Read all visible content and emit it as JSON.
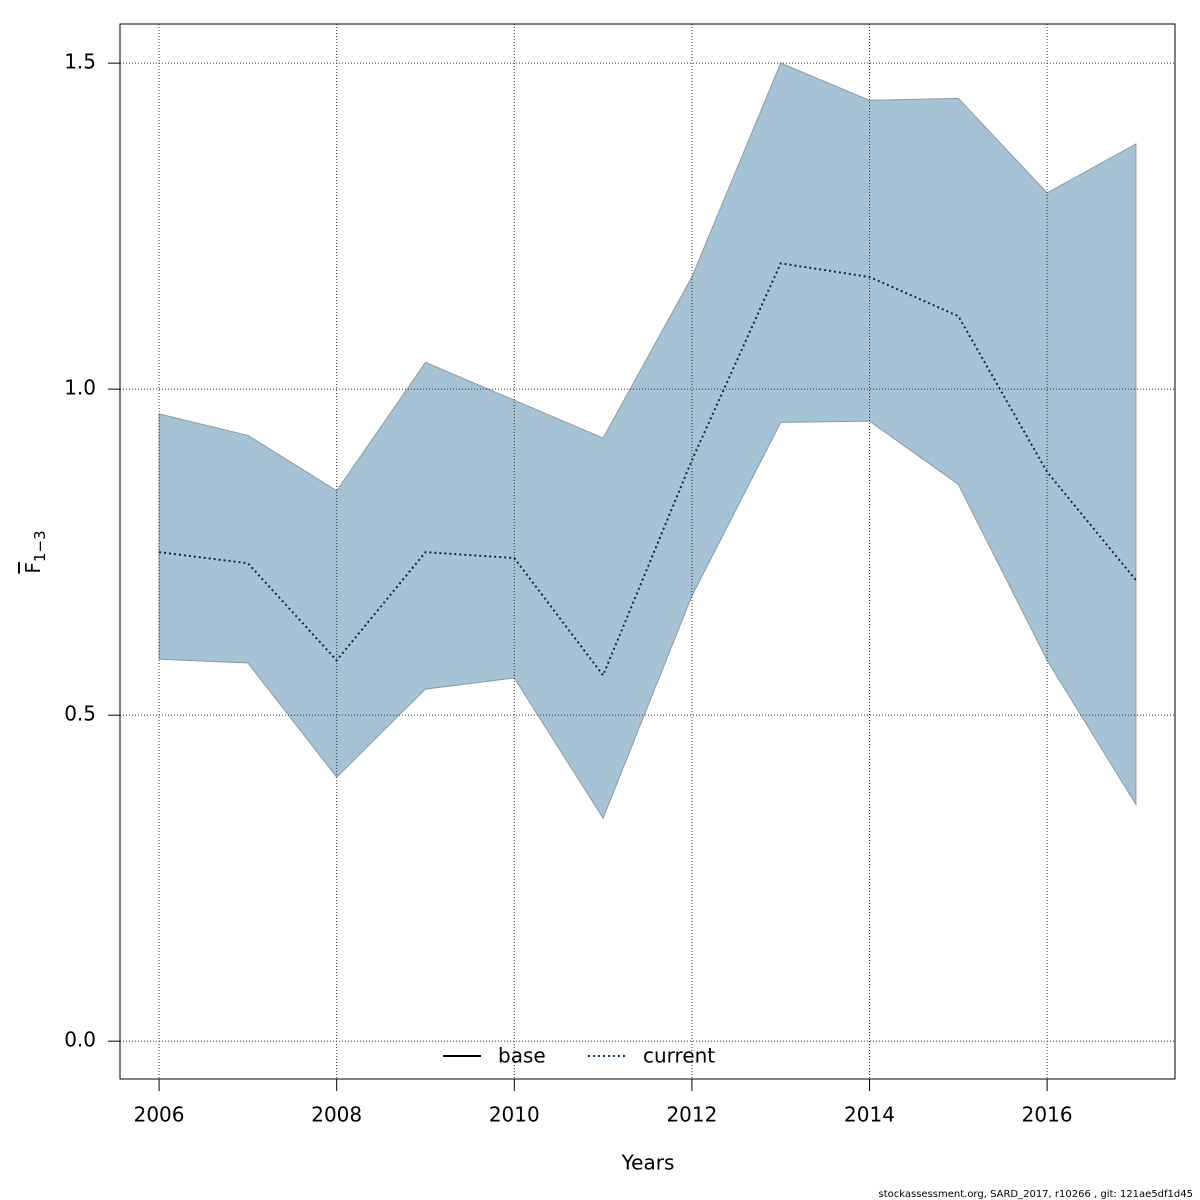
{
  "chart_data": {
    "type": "line",
    "xlabel": "Years",
    "ylabel": "F",
    "ylabel_sub": "1−3",
    "footer": "stockassessment.org, SARD_2017, r10266 , git: 121ae5df1d45",
    "x": [
      2006,
      2007,
      2008,
      2009,
      2010,
      2011,
      2012,
      2013,
      2014,
      2015,
      2016,
      2017
    ],
    "band": {
      "color": "#a5c3d4",
      "edge": "#8a9aa3",
      "upper": [
        0.962,
        0.929,
        0.844,
        1.041,
        0.983,
        0.925,
        1.172,
        1.5,
        1.443,
        1.446,
        1.301,
        1.376
      ],
      "lower": [
        0.586,
        0.58,
        0.405,
        0.54,
        0.557,
        0.342,
        0.683,
        0.949,
        0.951,
        0.854,
        0.584,
        0.363
      ]
    },
    "series": [
      {
        "name": "current",
        "color": "#0b2a3d",
        "dash": "dotted",
        "values": [
          0.75,
          0.733,
          0.584,
          0.75,
          0.741,
          0.561,
          0.891,
          1.193,
          1.172,
          1.112,
          0.873,
          0.707
        ]
      }
    ],
    "legend": [
      {
        "name": "base",
        "color": "#000000",
        "dash": "solid"
      },
      {
        "name": "current",
        "color": "#0b3a5c",
        "dash": "dotted"
      }
    ],
    "xlim": [
      2005.56,
      2017.44
    ],
    "ylim": [
      -0.058,
      1.56
    ],
    "xticks": [
      2006,
      2008,
      2010,
      2012,
      2014,
      2016
    ],
    "yticks": [
      {
        "value": 0,
        "label": "0.0"
      },
      0.5,
      {
        "value": 1,
        "label": "1.0"
      },
      1.5
    ],
    "grid": true
  }
}
